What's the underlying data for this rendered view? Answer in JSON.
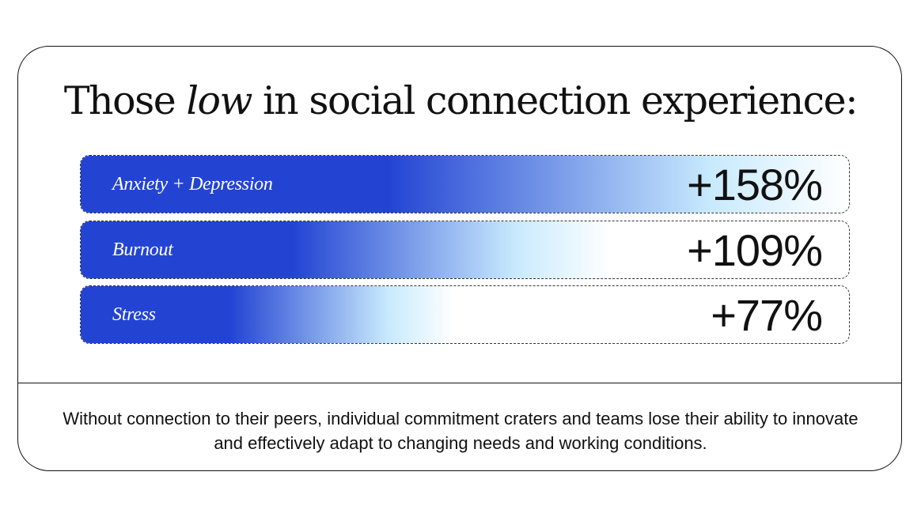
{
  "title": {
    "before": "Those ",
    "emphasis": "low",
    "after": " in social connection experience:"
  },
  "chart_data": {
    "type": "bar",
    "categories": [
      "Anxiety + Depression",
      "Burnout",
      "Stress"
    ],
    "values": [
      158,
      109,
      77
    ],
    "value_labels": [
      "+158%",
      "+109%",
      "+77%"
    ],
    "xlabel": "",
    "ylabel": "",
    "legend": "none",
    "grid": false
  },
  "colors": {
    "deep": "#2344d3",
    "light": "#c8eafd",
    "end": "#ffffff"
  },
  "footnote": "Without connection to their peers, individual commitment craters and teams lose their ability to innovate and effectively adapt to changing needs and working conditions."
}
